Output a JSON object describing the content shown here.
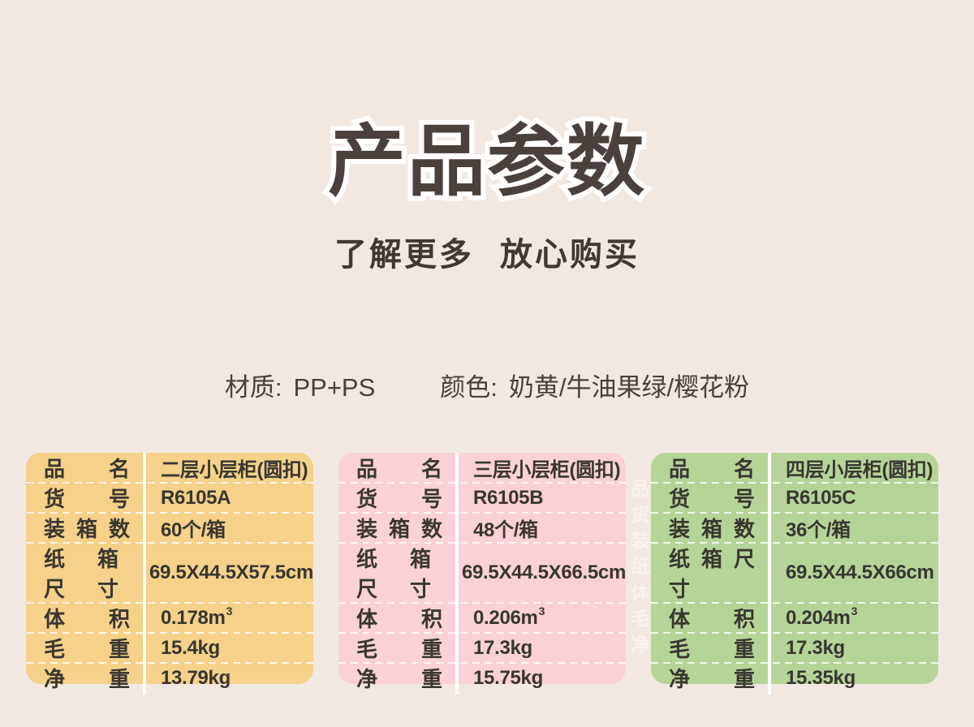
{
  "header": {
    "title": "产品参数",
    "subtitle": "了解更多 放心购买"
  },
  "specs": {
    "material_label": "材质:",
    "material_value": "PP+PS",
    "color_label": "颜色:",
    "color_value": "奶黄/牛油果绿/樱花粉"
  },
  "watermark_text": "品货装纸体毛净",
  "colors": {
    "background": "#f2e8e2",
    "title_text": "#4a403c",
    "title_outline": "#ffffff",
    "table_text": "#393631",
    "yellow_table": "#f5d189",
    "pink_table": "#fad1d6",
    "green_table": "#b7d498"
  },
  "tables": [
    {
      "product": "two-layer-cabinet",
      "rows": [
        {
          "label": "品 名",
          "value": "二层小层柜(圆扣)"
        },
        {
          "label": "货 号",
          "value": "R6105A"
        },
        {
          "label": "装 箱 数",
          "value": "60个/箱"
        },
        {
          "label": "纸 箱 尺 寸",
          "value": "69.5X44.5X57.5cm"
        },
        {
          "label": "体 积",
          "value": "0.178m",
          "sup": "3"
        },
        {
          "label": "毛 重",
          "value": "15.4kg"
        },
        {
          "label": "净 重",
          "value": "13.79kg"
        }
      ]
    },
    {
      "product": "three-layer-cabinet",
      "rows": [
        {
          "label": "品 名",
          "value": "三层小层柜(圆扣)"
        },
        {
          "label": "货 号",
          "value": "R6105B"
        },
        {
          "label": "装 箱 数",
          "value": "48个/箱"
        },
        {
          "label": "纸 箱 尺 寸",
          "value": "69.5X44.5X66.5cm"
        },
        {
          "label": "体 积",
          "value": "0.206m",
          "sup": "3"
        },
        {
          "label": "毛 重",
          "value": "17.3kg"
        },
        {
          "label": "净 重",
          "value": "15.75kg"
        }
      ]
    },
    {
      "product": "four-layer-cabinet",
      "rows": [
        {
          "label": "品 名",
          "value": "四层小层柜(圆扣)"
        },
        {
          "label": "货 号",
          "value": "R6105C"
        },
        {
          "label": "装 箱 数",
          "value": "36个/箱"
        },
        {
          "label": "纸 箱 尺 寸",
          "value": "69.5X44.5X66cm"
        },
        {
          "label": "体 积",
          "value": "0.204m",
          "sup": "3"
        },
        {
          "label": "毛 重",
          "value": "17.3kg"
        },
        {
          "label": "净 重",
          "value": "15.35kg"
        }
      ]
    }
  ]
}
